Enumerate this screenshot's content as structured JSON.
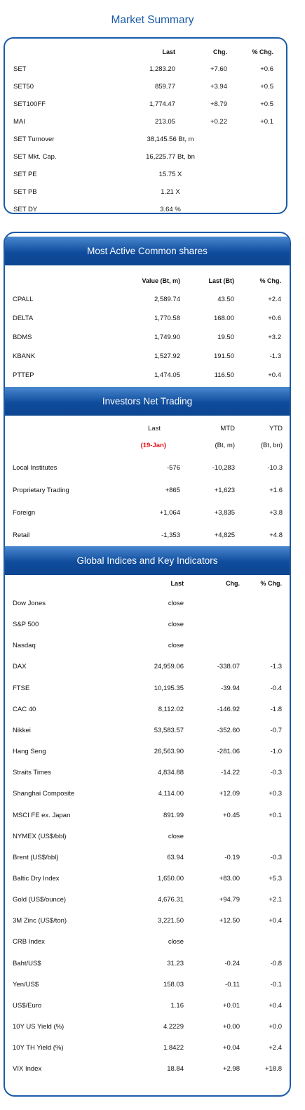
{
  "page_title": "Market Summary",
  "market_summary": {
    "headers": [
      "Last",
      "Chg.",
      "% Chg."
    ],
    "rows": [
      {
        "name": "SET",
        "last": "1,283.20",
        "chg": "+7.60",
        "pct": "+0.6"
      },
      {
        "name": "SET50",
        "last": "859.77",
        "chg": "+3.94",
        "pct": "+0.5"
      },
      {
        "name": "SET100FF",
        "last": "1,774.47",
        "chg": "+8.79",
        "pct": "+0.5"
      },
      {
        "name": "MAI",
        "last": "213.05",
        "chg": "+0.22",
        "pct": "+0.1"
      },
      {
        "name": "SET Turnover",
        "last": "38,145.56 Bt, m",
        "chg": "",
        "pct": ""
      },
      {
        "name": "SET Mkt. Cap.",
        "last": "16,225.77 Bt, bn",
        "chg": "",
        "pct": ""
      },
      {
        "name": "SET PE",
        "last": "15.75 X",
        "chg": "",
        "pct": ""
      },
      {
        "name": "SET PB",
        "last": "1.21 X",
        "chg": "",
        "pct": ""
      },
      {
        "name": "SET DY",
        "last": "3.64 %",
        "chg": "",
        "pct": ""
      }
    ]
  },
  "most_active": {
    "title": "Most Active Common shares",
    "headers": [
      "Value (Bt, m)",
      "Last (Bt)",
      "% Chg."
    ],
    "rows": [
      {
        "name": "CPALL",
        "value": "2,589.74",
        "last": "43.50",
        "pct": "+2.4"
      },
      {
        "name": "DELTA",
        "value": "1,770.58",
        "last": "168.00",
        "pct": "+0.6"
      },
      {
        "name": "BDMS",
        "value": "1,749.90",
        "last": "19.50",
        "pct": "+3.2"
      },
      {
        "name": "KBANK",
        "value": "1,527.92",
        "last": "191.50",
        "pct": "-1.3"
      },
      {
        "name": "PTTEP",
        "value": "1,474.05",
        "last": "116.50",
        "pct": "+0.4"
      }
    ]
  },
  "investors": {
    "title": "Investors Net Trading",
    "headers": [
      "Last",
      "MTD",
      "YTD"
    ],
    "subheaders": [
      "(19-Jan)",
      "(Bt, m)",
      "(Bt, bn)"
    ],
    "rows": [
      {
        "name": "Local Institutes",
        "last": "-576",
        "mtd": "-10,283",
        "ytd": "-10.3"
      },
      {
        "name": "Proprietary Trading",
        "last": "+865",
        "mtd": "+1,623",
        "ytd": "+1.6"
      },
      {
        "name": "Foreign",
        "last": "+1,064",
        "mtd": "+3,835",
        "ytd": "+3.8"
      },
      {
        "name": "Retail",
        "last": "-1,353",
        "mtd": "+4,825",
        "ytd": "+4.8"
      }
    ]
  },
  "global": {
    "title": "Global Indices and Key Indicators",
    "headers": [
      "Last",
      "Chg.",
      "% Chg."
    ],
    "rows": [
      {
        "name": "Dow Jones",
        "last": "close",
        "chg": "",
        "pct": ""
      },
      {
        "name": "S&P 500",
        "last": "close",
        "chg": "",
        "pct": ""
      },
      {
        "name": "Nasdaq",
        "last": "close",
        "chg": "",
        "pct": ""
      },
      {
        "name": "DAX",
        "last": "24,959.06",
        "chg": "-338.07",
        "pct": "-1.3"
      },
      {
        "name": "FTSE",
        "last": "10,195.35",
        "chg": "-39.94",
        "pct": "-0.4"
      },
      {
        "name": "CAC 40",
        "last": "8,112.02",
        "chg": "-146.92",
        "pct": "-1.8"
      },
      {
        "name": "Nikkei",
        "last": "53,583.57",
        "chg": "-352.60",
        "pct": "-0.7"
      },
      {
        "name": "Hang Seng",
        "last": "26,563.90",
        "chg": "-281.06",
        "pct": "-1.0"
      },
      {
        "name": "Straits Times",
        "last": "4,834.88",
        "chg": "-14.22",
        "pct": "-0.3"
      },
      {
        "name": "Shanghai Composite",
        "last": "4,114.00",
        "chg": "+12.09",
        "pct": "+0.3"
      },
      {
        "name": "MSCI FE ex. Japan",
        "last": "891.99",
        "chg": "+0.45",
        "pct": "+0.1"
      },
      {
        "name": "NYMEX (US$/bbl)",
        "last": "close",
        "chg": "",
        "pct": ""
      },
      {
        "name": "Brent (US$/bbl)",
        "last": "63.94",
        "chg": "-0.19",
        "pct": "-0.3"
      },
      {
        "name": "Baltic Dry Index",
        "last": "1,650.00",
        "chg": "+83.00",
        "pct": "+5.3"
      },
      {
        "name": "Gold (US$/ounce)",
        "last": "4,676.31",
        "chg": "+94.79",
        "pct": "+2.1"
      },
      {
        "name": "3M Zinc (US$/ton)",
        "last": "3,221.50",
        "chg": "+12.50",
        "pct": "+0.4"
      },
      {
        "name": "CRB Index",
        "last": "close",
        "chg": "",
        "pct": ""
      },
      {
        "name": "Baht/US$",
        "last": "31.23",
        "chg": "-0.24",
        "pct": "-0.8"
      },
      {
        "name": "Yen/US$",
        "last": "158.03",
        "chg": "-0.11",
        "pct": "-0.1"
      },
      {
        "name": "US$/Euro",
        "last": "1.16",
        "chg": "+0.01",
        "pct": "+0.4"
      },
      {
        "name": "10Y US Yield (%)",
        "last": "4.2229",
        "chg": "+0.00",
        "pct": "+0.0"
      },
      {
        "name": "10Y TH Yield (%)",
        "last": "1.8422",
        "chg": "+0.04",
        "pct": "+2.4"
      },
      {
        "name": "VIX Index",
        "last": "18.84",
        "chg": "+2.98",
        "pct": "+18.8"
      }
    ]
  }
}
